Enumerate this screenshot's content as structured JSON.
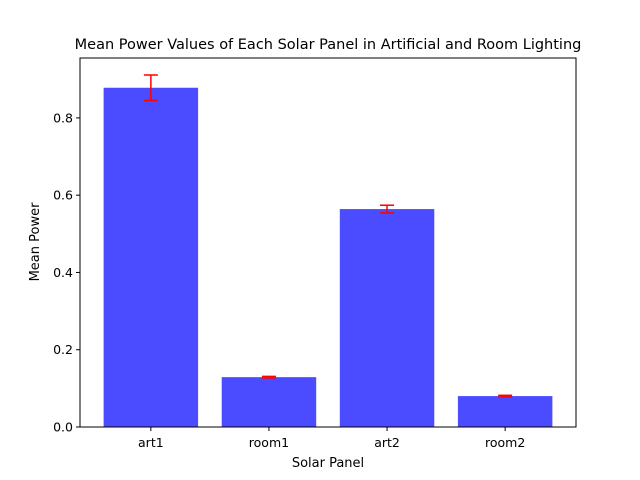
{
  "chart_data": {
    "type": "bar",
    "title": "Mean Power Values of Each Solar Panel in Artificial and Room Lighting",
    "xlabel": "Solar Panel",
    "ylabel": "Mean Power",
    "categories": [
      "art1",
      "room1",
      "art2",
      "room2"
    ],
    "values": [
      0.878,
      0.129,
      0.564,
      0.08
    ],
    "errors": [
      0.033,
      0.002,
      0.01,
      0.002
    ],
    "ylim": [
      0,
      0.955
    ],
    "yticks": [
      0.0,
      0.2,
      0.4,
      0.6,
      0.8
    ],
    "ytick_labels": [
      "0.0",
      "0.2",
      "0.4",
      "0.6",
      "0.8"
    ],
    "grid": false,
    "bar_color": "#4b4bff",
    "error_color": "#ff0000"
  }
}
